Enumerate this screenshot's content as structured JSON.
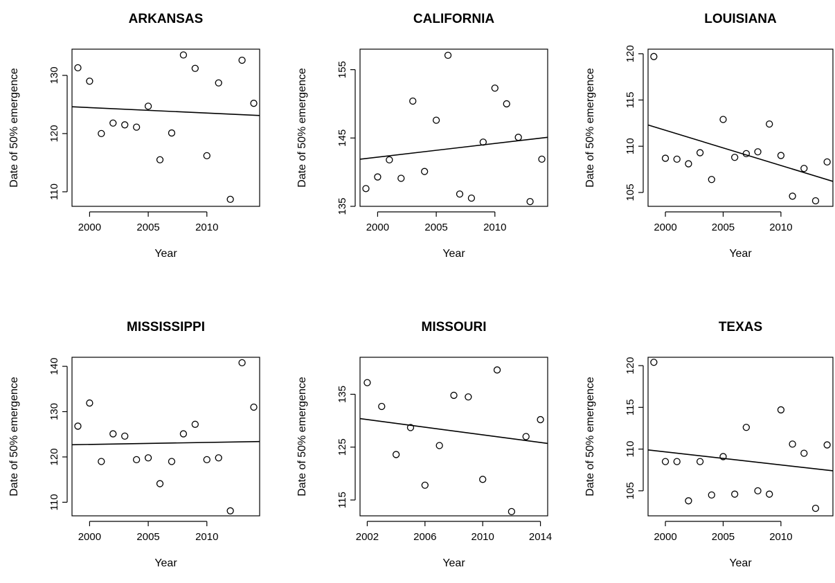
{
  "chart_data": [
    {
      "type": "scatter",
      "title": "ARKANSAS",
      "xlabel": "Year",
      "ylabel": "Date of 50% emergence",
      "xlim": [
        1998.5,
        2014.5
      ],
      "ylim": [
        107.5,
        134.5
      ],
      "xticks": [
        2000,
        2005,
        2010
      ],
      "yticks": [
        110,
        120,
        130
      ],
      "x": [
        1999,
        2000,
        2001,
        2002,
        2003,
        2004,
        2005,
        2006,
        2007,
        2008,
        2009,
        2010,
        2011,
        2012,
        2013,
        2014
      ],
      "y": [
        131.3,
        129.0,
        120.0,
        121.8,
        121.5,
        121.1,
        124.7,
        115.5,
        120.1,
        133.5,
        131.2,
        116.2,
        128.7,
        108.7,
        132.6,
        125.2
      ],
      "trendline": {
        "x": [
          1998.5,
          2014.5
        ],
        "y": [
          124.6,
          123.1
        ]
      }
    },
    {
      "type": "scatter",
      "title": "CALIFORNIA",
      "xlabel": "Year",
      "ylabel": "Date of 50% emergence",
      "xlim": [
        1998.5,
        2014.5
      ],
      "ylim": [
        135,
        158
      ],
      "xticks": [
        2000,
        2005,
        2010
      ],
      "yticks": [
        135,
        145,
        155
      ],
      "x": [
        1999,
        2000,
        2001,
        2002,
        2003,
        2004,
        2005,
        2006,
        2007,
        2008,
        2009,
        2010,
        2011,
        2012,
        2013,
        2014
      ],
      "y": [
        137.6,
        139.3,
        141.8,
        139.1,
        150.4,
        140.1,
        147.6,
        157.1,
        136.8,
        136.2,
        144.4,
        152.3,
        150.0,
        145.1,
        135.7,
        141.9
      ],
      "trendline": {
        "x": [
          1998.5,
          2014.5
        ],
        "y": [
          141.9,
          145.1
        ]
      }
    },
    {
      "type": "scatter",
      "title": "LOUISIANA",
      "xlabel": "Year",
      "ylabel": "Date of 50% emergence",
      "xlim": [
        1998.5,
        2014.5
      ],
      "ylim": [
        103.5,
        120.5
      ],
      "xticks": [
        2000,
        2005,
        2010
      ],
      "yticks": [
        105,
        110,
        115,
        120
      ],
      "x": [
        1999,
        2000,
        2001,
        2002,
        2003,
        2004,
        2005,
        2006,
        2007,
        2008,
        2009,
        2010,
        2011,
        2012,
        2013,
        2014
      ],
      "y": [
        119.7,
        108.7,
        108.6,
        108.1,
        109.3,
        106.4,
        112.9,
        108.8,
        109.2,
        109.4,
        112.4,
        109.0,
        104.6,
        107.6,
        104.1,
        108.3
      ],
      "trendline": {
        "x": [
          1998.5,
          2014.5
        ],
        "y": [
          112.3,
          106.2
        ]
      }
    },
    {
      "type": "scatter",
      "title": "MISSISSIPPI",
      "xlabel": "Year",
      "ylabel": "Date of 50% emergence",
      "xlim": [
        1998.5,
        2014.5
      ],
      "ylim": [
        107,
        142
      ],
      "xticks": [
        2000,
        2005,
        2010
      ],
      "yticks": [
        110,
        120,
        130,
        140
      ],
      "x": [
        1999,
        2000,
        2001,
        2002,
        2003,
        2004,
        2005,
        2006,
        2007,
        2008,
        2009,
        2010,
        2011,
        2012,
        2013,
        2014
      ],
      "y": [
        126.8,
        131.9,
        119.0,
        125.1,
        124.6,
        119.4,
        119.8,
        114.1,
        119.0,
        125.1,
        127.2,
        119.4,
        119.8,
        108.1,
        140.8,
        131.0
      ],
      "trendline": {
        "x": [
          1998.5,
          2014.5
        ],
        "y": [
          122.7,
          123.4
        ]
      }
    },
    {
      "type": "scatter",
      "title": "MISSOURI",
      "xlabel": "Year",
      "ylabel": "Date of 50% emergence",
      "xlim": [
        2001.5,
        2014.5
      ],
      "ylim": [
        112,
        142
      ],
      "xticks": [
        2002,
        2006,
        2010,
        2014
      ],
      "yticks": [
        115,
        125,
        135
      ],
      "x": [
        2002,
        2003,
        2004,
        2005,
        2006,
        2007,
        2008,
        2009,
        2010,
        2011,
        2012,
        2013,
        2014
      ],
      "y": [
        137.2,
        132.7,
        123.6,
        128.7,
        117.8,
        125.3,
        134.8,
        134.5,
        118.9,
        139.6,
        112.8,
        127.0,
        130.2
      ],
      "trendline": {
        "x": [
          2001.5,
          2014.5
        ],
        "y": [
          130.4,
          125.7
        ]
      }
    },
    {
      "type": "scatter",
      "title": "TEXAS",
      "xlabel": "Year",
      "ylabel": "Date of 50% emergence",
      "xlim": [
        1998.5,
        2014.5
      ],
      "ylim": [
        102,
        121
      ],
      "xticks": [
        2000,
        2005,
        2010
      ],
      "yticks": [
        105,
        110,
        115,
        120
      ],
      "x": [
        1999,
        2000,
        2001,
        2002,
        2003,
        2004,
        2005,
        2006,
        2007,
        2008,
        2009,
        2010,
        2011,
        2012,
        2013,
        2014
      ],
      "y": [
        120.4,
        108.5,
        108.5,
        103.8,
        108.5,
        104.5,
        109.1,
        104.6,
        112.6,
        105.0,
        104.6,
        114.7,
        110.6,
        109.5,
        102.9,
        110.5
      ],
      "trendline": {
        "x": [
          1998.5,
          2014.5
        ],
        "y": [
          109.9,
          107.4
        ]
      }
    }
  ]
}
